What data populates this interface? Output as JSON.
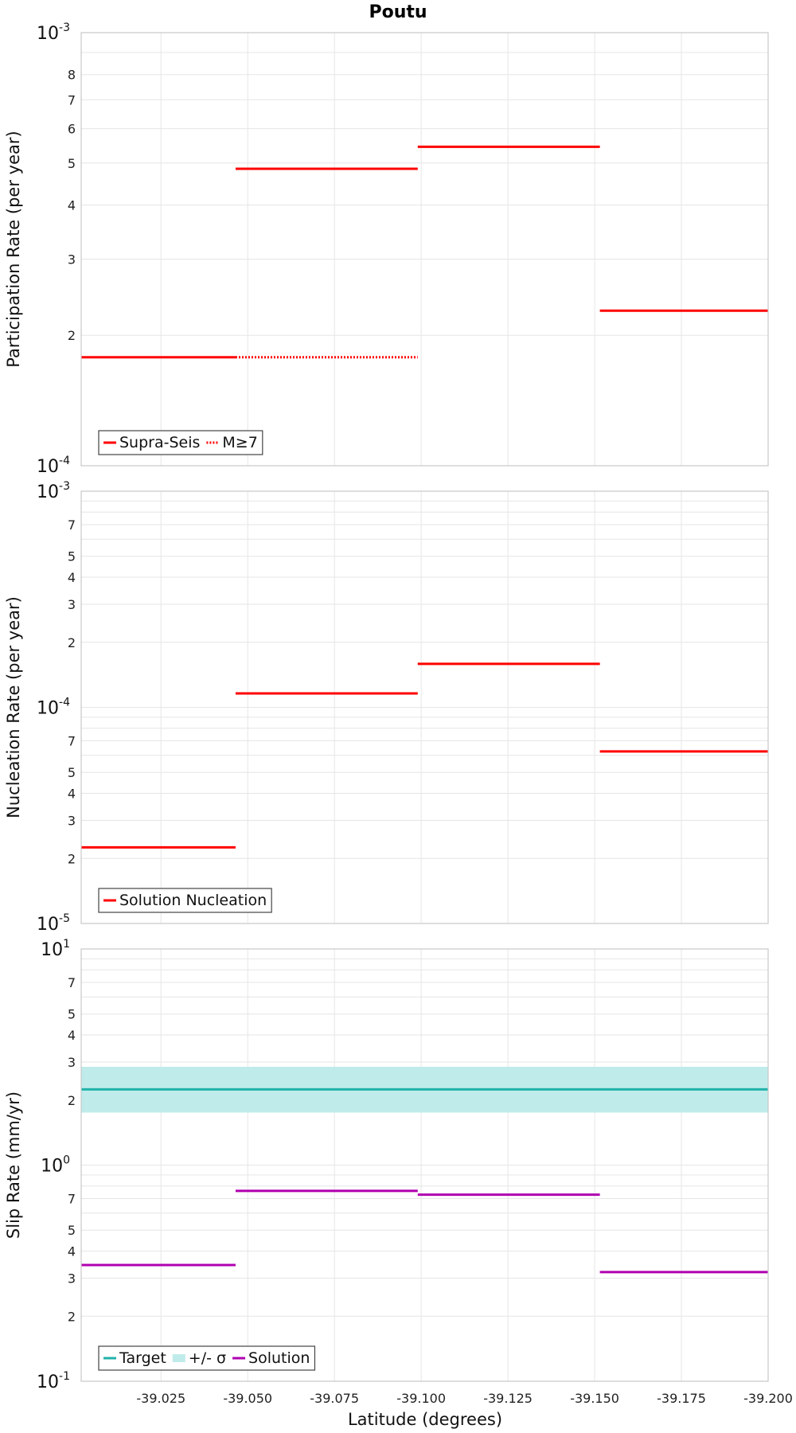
{
  "chart_data": {
    "title": "Poutu",
    "xlabel": "Latitude (degrees)",
    "x_ticks": [
      -39.025,
      -39.05,
      -39.075,
      -39.1,
      -39.125,
      -39.15,
      -39.175,
      -39.2
    ],
    "x_tick_labels": [
      "-39.025",
      "-39.050",
      "-39.075",
      "-39.100",
      "-39.125",
      "-39.150",
      "-39.175",
      "-39.200"
    ],
    "xlim": [
      -39.002,
      -39.2
    ],
    "grid": true,
    "panels": [
      {
        "type": "line",
        "scale": "log",
        "ylabel": "Participation Rate (per year)",
        "ylim": [
          0.0001,
          0.001
        ],
        "decade_labels": [
          {
            "base": "10",
            "exp": "-4"
          },
          {
            "base": "10",
            "exp": "-3"
          }
        ],
        "minor_tick_labels": [
          {
            "value": 0.0002,
            "label": "2"
          },
          {
            "value": 0.0003,
            "label": "3"
          },
          {
            "value": 0.0004,
            "label": "4"
          },
          {
            "value": 0.0005,
            "label": "5"
          },
          {
            "value": 0.0006,
            "label": "6"
          },
          {
            "value": 0.0007,
            "label": "7"
          },
          {
            "value": 0.0008,
            "label": "8"
          }
        ],
        "legend": {
          "position": "bottom-left",
          "items": [
            {
              "label": "Supra-Seis",
              "style": "solid",
              "color": "#ff0000"
            },
            {
              "label": "M≥7",
              "style": "dotted",
              "color": "#ff0000"
            }
          ]
        },
        "series": [
          {
            "name": "Supra-Seis",
            "color": "#ff0000",
            "style": "solid",
            "segments": [
              {
                "x0": -39.002,
                "x1": -39.0465,
                "y": 0.000178
              },
              {
                "x0": -39.0465,
                "x1": -39.099,
                "y": 0.000485
              },
              {
                "x0": -39.099,
                "x1": -39.1515,
                "y": 0.000545
              },
              {
                "x0": -39.1515,
                "x1": -39.2,
                "y": 0.000228
              }
            ]
          },
          {
            "name": "M≥7",
            "color": "#ff0000",
            "style": "dotted",
            "segments": [
              {
                "x0": -39.0465,
                "x1": -39.099,
                "y": 0.000178
              }
            ]
          }
        ]
      },
      {
        "type": "line",
        "scale": "log",
        "ylabel": "Nucleation Rate (per year)",
        "ylim": [
          1e-05,
          0.001
        ],
        "decade_labels": [
          {
            "base": "10",
            "exp": "-5"
          },
          {
            "base": "10",
            "exp": "-4"
          },
          {
            "base": "10",
            "exp": "-3"
          }
        ],
        "minor_tick_labels": [
          {
            "value": 2e-05,
            "label": "2"
          },
          {
            "value": 3e-05,
            "label": "3"
          },
          {
            "value": 4e-05,
            "label": "4"
          },
          {
            "value": 5e-05,
            "label": "5"
          },
          {
            "value": 7e-05,
            "label": "7"
          },
          {
            "value": 0.0002,
            "label": "2"
          },
          {
            "value": 0.0003,
            "label": "3"
          },
          {
            "value": 0.0004,
            "label": "4"
          },
          {
            "value": 0.0005,
            "label": "5"
          },
          {
            "value": 0.0007,
            "label": "7"
          }
        ],
        "legend": {
          "position": "bottom-left",
          "items": [
            {
              "label": "Solution Nucleation",
              "style": "solid",
              "color": "#ff0000"
            }
          ]
        },
        "series": [
          {
            "name": "Solution Nucleation",
            "color": "#ff0000",
            "style": "solid",
            "segments": [
              {
                "x0": -39.002,
                "x1": -39.0465,
                "y": 2.25e-05
              },
              {
                "x0": -39.0465,
                "x1": -39.099,
                "y": 0.000116
              },
              {
                "x0": -39.099,
                "x1": -39.1515,
                "y": 0.000159
              },
              {
                "x0": -39.1515,
                "x1": -39.2,
                "y": 6.25e-05
              }
            ]
          }
        ]
      },
      {
        "type": "line",
        "scale": "log",
        "ylabel": "Slip Rate (mm/yr)",
        "ylim": [
          0.1,
          10
        ],
        "decade_labels": [
          {
            "base": "10",
            "exp": "-1"
          },
          {
            "base": "10",
            "exp": "0"
          },
          {
            "base": "10",
            "exp": "1"
          }
        ],
        "minor_tick_labels": [
          {
            "value": 0.2,
            "label": "2"
          },
          {
            "value": 0.3,
            "label": "3"
          },
          {
            "value": 0.4,
            "label": "4"
          },
          {
            "value": 0.5,
            "label": "5"
          },
          {
            "value": 0.7,
            "label": "7"
          },
          {
            "value": 2,
            "label": "2"
          },
          {
            "value": 3,
            "label": "3"
          },
          {
            "value": 4,
            "label": "4"
          },
          {
            "value": 5,
            "label": "5"
          },
          {
            "value": 7,
            "label": "7"
          }
        ],
        "legend": {
          "position": "bottom-left",
          "items": [
            {
              "label": "Target",
              "style": "solid",
              "color": "#20b2aa"
            },
            {
              "label": "+/- σ",
              "style": "band",
              "color": "#bfecea"
            },
            {
              "label": "Solution",
              "style": "solid",
              "color": "#b000b0"
            }
          ]
        },
        "band": {
          "name": "+/- σ",
          "color": "#bfecea",
          "y_low": 1.75,
          "y_high": 2.85
        },
        "series": [
          {
            "name": "Target",
            "color": "#20b2aa",
            "style": "solid",
            "segments": [
              {
                "x0": -39.002,
                "x1": -39.2,
                "y": 2.24
              }
            ]
          },
          {
            "name": "Solution",
            "color": "#b000b0",
            "style": "solid",
            "segments": [
              {
                "x0": -39.002,
                "x1": -39.0465,
                "y": 0.345
              },
              {
                "x0": -39.0465,
                "x1": -39.099,
                "y": 0.76
              },
              {
                "x0": -39.099,
                "x1": -39.1515,
                "y": 0.73
              },
              {
                "x0": -39.1515,
                "x1": -39.2,
                "y": 0.32
              }
            ]
          }
        ]
      }
    ]
  }
}
